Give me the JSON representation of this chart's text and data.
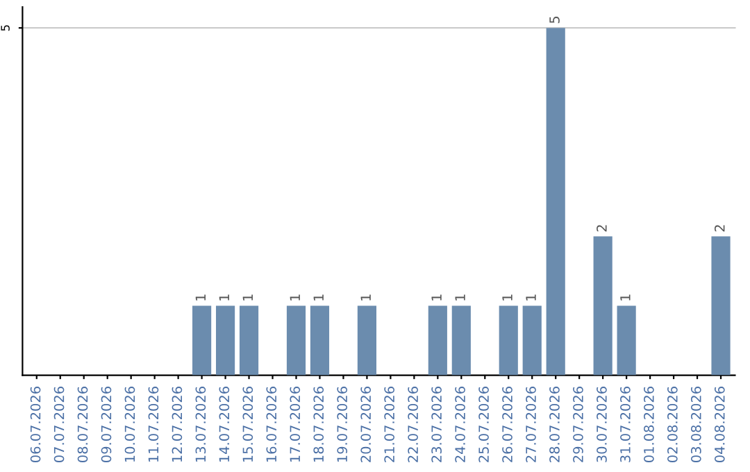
{
  "chart_data": {
    "type": "bar",
    "categories": [
      "06.07.2026",
      "07.07.2026",
      "08.07.2026",
      "09.07.2026",
      "10.07.2026",
      "11.07.2026",
      "12.07.2026",
      "13.07.2026",
      "14.07.2026",
      "15.07.2026",
      "16.07.2026",
      "17.07.2026",
      "18.07.2026",
      "19.07.2026",
      "20.07.2026",
      "21.07.2026",
      "22.07.2026",
      "23.07.2026",
      "24.07.2026",
      "25.07.2026",
      "26.07.2026",
      "27.07.2026",
      "28.07.2026",
      "29.07.2026",
      "30.07.2026",
      "31.07.2026",
      "01.08.2026",
      "02.08.2026",
      "03.08.2026",
      "04.08.2026"
    ],
    "values": [
      0,
      0,
      0,
      0,
      0,
      0,
      0,
      1,
      1,
      1,
      0,
      1,
      1,
      0,
      1,
      0,
      0,
      1,
      1,
      0,
      1,
      1,
      5,
      0,
      2,
      1,
      0,
      0,
      0,
      2
    ],
    "value_labels": [
      null,
      null,
      null,
      null,
      null,
      null,
      null,
      "1",
      "1",
      "1",
      null,
      "1",
      "1",
      null,
      "1",
      null,
      null,
      "1",
      "1",
      null,
      "1",
      "1",
      "5",
      null,
      "2",
      "1",
      null,
      null,
      null,
      "2"
    ],
    "color": "#6b8cae",
    "ylim": [
      0,
      5.3
    ],
    "yticks": [
      5
    ],
    "grid": "y"
  }
}
